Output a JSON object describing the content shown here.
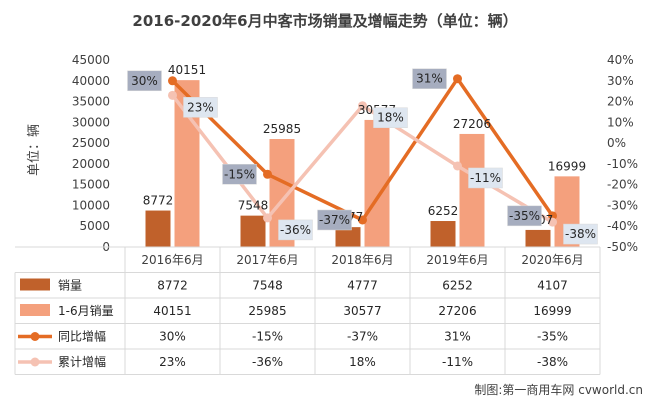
{
  "chart_data": {
    "type": "bar",
    "title": "2016-2020年6月中客市场销量及增幅走势（单位：辆）",
    "ylabel": "单位：辆",
    "categories": [
      "2016年6月",
      "2017年6月",
      "2018年6月",
      "2019年6月",
      "2020年6月"
    ],
    "ylim": [
      0,
      45000
    ],
    "y_ticks": [
      0,
      5000,
      10000,
      15000,
      20000,
      25000,
      30000,
      35000,
      40000,
      45000
    ],
    "y2lim": [
      -50,
      40
    ],
    "y2_ticks": [
      40,
      30,
      20,
      10,
      0,
      -10,
      -20,
      -30,
      -40,
      -50
    ],
    "y2_tick_labels": [
      "40%",
      "30%",
      "20%",
      "10%",
      "0%",
      "-10%",
      "-20%",
      "-30%",
      "-40%",
      "-50%"
    ],
    "series": [
      {
        "name": "销量",
        "kind": "bar",
        "axis": "left",
        "color": "#c0612b",
        "values": [
          8772,
          7548,
          4777,
          6252,
          4107
        ],
        "labels": [
          "8772",
          "7548",
          "4777",
          "6252",
          "4107"
        ]
      },
      {
        "name": "1-6月销量",
        "kind": "bar",
        "axis": "left",
        "color": "#f4a07d",
        "values": [
          40151,
          25985,
          30577,
          27206,
          16999
        ],
        "labels": [
          "40151",
          "25985",
          "30577",
          "27206",
          "16999"
        ]
      },
      {
        "name": "同比增幅",
        "kind": "line",
        "axis": "right",
        "color": "#e46c24",
        "values": [
          30,
          -15,
          -37,
          31,
          -35
        ],
        "labels": [
          "30%",
          "-15%",
          "-37%",
          "31%",
          "-35%"
        ]
      },
      {
        "name": "累计增幅",
        "kind": "line",
        "axis": "right",
        "color": "#f5c2b3",
        "values": [
          23,
          -36,
          18,
          -11,
          -38
        ],
        "labels": [
          "23%",
          "-36%",
          "18%",
          "-11%",
          "-38%"
        ]
      }
    ],
    "table_rows": [
      {
        "name": "销量",
        "cells": [
          "8772",
          "7548",
          "4777",
          "6252",
          "4107"
        ]
      },
      {
        "name": "1-6月销量",
        "cells": [
          "40151",
          "25985",
          "30577",
          "27206",
          "16999"
        ]
      },
      {
        "name": "同比增幅",
        "cells": [
          "30%",
          "-15%",
          "-37%",
          "31%",
          "-35%"
        ]
      },
      {
        "name": "累计增幅",
        "cells": [
          "23%",
          "-36%",
          "18%",
          "-11%",
          "-38%"
        ]
      }
    ],
    "grid": false,
    "legend": "data-table-bottom"
  },
  "credit": "制图:第一商用车网 cvworld.cn"
}
